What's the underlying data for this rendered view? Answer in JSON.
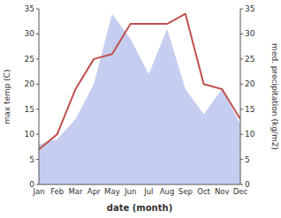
{
  "chart_data": {
    "type": "line",
    "xlabel": "date (month)",
    "ylabel": "max temp (C)",
    "y2label": "med. precipitation (kg/m2)",
    "categories": [
      "Jan",
      "Feb",
      "Mar",
      "Apr",
      "May",
      "Jun",
      "Jul",
      "Aug",
      "Sep",
      "Oct",
      "Nov",
      "Dec"
    ],
    "series": [
      {
        "type": "line",
        "color": "#c0504d",
        "values": [
          7,
          10,
          19,
          25,
          26,
          32,
          32,
          32,
          34,
          20,
          19,
          13
        ]
      },
      {
        "type": "area",
        "color": "#c5cef0",
        "axis": "y2",
        "values": [
          8,
          9,
          13,
          20,
          34,
          29,
          22,
          31,
          19,
          14,
          19,
          12
        ]
      }
    ],
    "ylim": [
      0,
      35
    ],
    "yticks": [
      0,
      5,
      10,
      15,
      20,
      25,
      30,
      35
    ],
    "y2lim": [
      0,
      35
    ],
    "y2ticks": [
      0,
      5,
      10,
      15,
      20,
      25,
      30,
      35
    ]
  }
}
